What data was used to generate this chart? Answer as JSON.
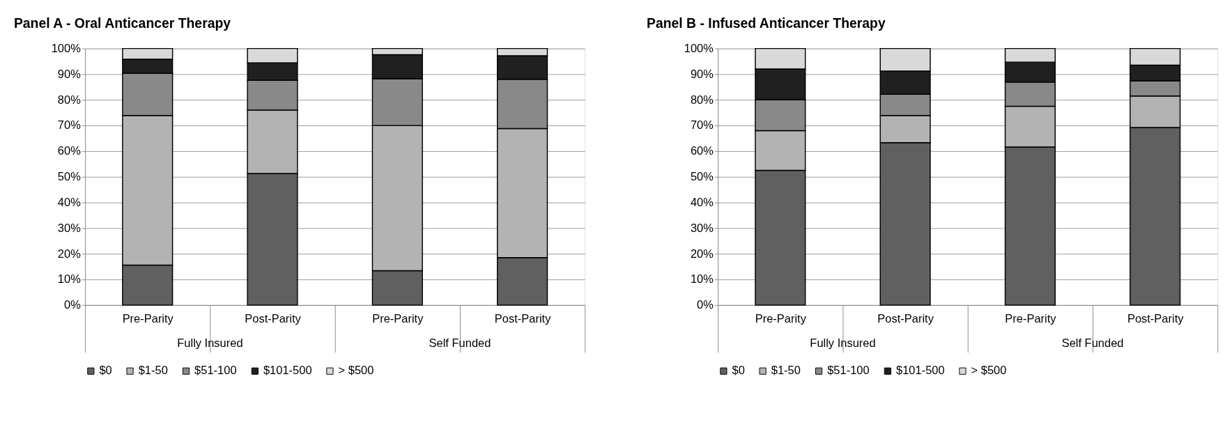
{
  "chart_data": [
    {
      "type": "bar",
      "title": "Panel A - Oral Anticancer Therapy",
      "stacked": true,
      "categories": [
        "Pre-Parity",
        "Post-Parity",
        "Pre-Parity",
        "Post-Parity"
      ],
      "annotations": [
        "Fully Insured",
        "Self Funded"
      ],
      "series": [
        {
          "name": "$0",
          "color": "#606060",
          "values": [
            15.6,
            51.3,
            13.4,
            18.5
          ]
        },
        {
          "name": "$1-50",
          "color": "#b3b3b3",
          "values": [
            58.3,
            24.7,
            56.6,
            50.3
          ]
        },
        {
          "name": "$51-100",
          "color": "#898989",
          "values": [
            16.4,
            11.6,
            18.2,
            19.2
          ]
        },
        {
          "name": "$101-500",
          "color": "#202020",
          "values": [
            5.5,
            6.8,
            9.4,
            9.2
          ]
        },
        {
          "name": "> $500",
          "color": "#d9d9d9",
          "values": [
            4.2,
            5.6,
            2.4,
            2.8
          ]
        }
      ],
      "ylim": [
        0,
        100
      ],
      "yticks": [
        {
          "value": 0,
          "label": "0%"
        },
        {
          "value": 10,
          "label": "10%"
        },
        {
          "value": 20,
          "label": "20%"
        },
        {
          "value": 30,
          "label": "30%"
        },
        {
          "value": 40,
          "label": "40%"
        },
        {
          "value": 50,
          "label": "50%"
        },
        {
          "value": 60,
          "label": "60%"
        },
        {
          "value": 70,
          "label": "70%"
        },
        {
          "value": 80,
          "label": "80%"
        },
        {
          "value": 90,
          "label": "90%"
        },
        {
          "value": 100,
          "label": "100%"
        }
      ],
      "grid": "y",
      "legend": "bottom"
    },
    {
      "type": "bar",
      "title": "Panel B - Infused Anticancer Therapy",
      "stacked": true,
      "categories": [
        "Pre-Parity",
        "Post-Parity",
        "Pre-Parity",
        "Post-Parity"
      ],
      "annotations": [
        "Fully Insured",
        "Self Funded"
      ],
      "series": [
        {
          "name": "$0",
          "color": "#606060",
          "values": [
            52.5,
            63.3,
            61.6,
            69.2
          ]
        },
        {
          "name": "$1-50",
          "color": "#b3b3b3",
          "values": [
            15.5,
            10.6,
            15.9,
            12.3
          ]
        },
        {
          "name": "$51-100",
          "color": "#898989",
          "values": [
            12.0,
            8.3,
            9.4,
            5.9
          ]
        },
        {
          "name": "$101-500",
          "color": "#202020",
          "values": [
            12.0,
            9.0,
            7.8,
            6.1
          ]
        },
        {
          "name": "> $500",
          "color": "#d9d9d9",
          "values": [
            8.0,
            8.8,
            5.3,
            6.5
          ]
        }
      ],
      "ylim": [
        0,
        100
      ],
      "yticks": [
        {
          "value": 0,
          "label": "0%"
        },
        {
          "value": 10,
          "label": "10%"
        },
        {
          "value": 20,
          "label": "20%"
        },
        {
          "value": 30,
          "label": "30%"
        },
        {
          "value": 40,
          "label": "40%"
        },
        {
          "value": 50,
          "label": "50%"
        },
        {
          "value": 60,
          "label": "60%"
        },
        {
          "value": 70,
          "label": "70%"
        },
        {
          "value": 80,
          "label": "80%"
        },
        {
          "value": 90,
          "label": "90%"
        },
        {
          "value": 100,
          "label": "100%"
        }
      ],
      "grid": "y",
      "legend": "bottom"
    }
  ]
}
